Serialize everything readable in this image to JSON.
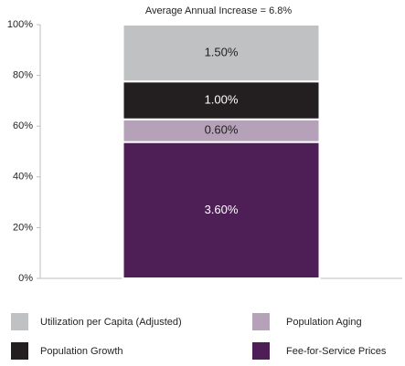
{
  "chart_data": {
    "type": "bar",
    "stacked": "percent",
    "title": "Average Annual Increase = 6.8%",
    "categories": [
      null
    ],
    "series": [
      {
        "name": "Utilization per Capita (Adjusted)",
        "color": "#c0c1c3",
        "values": [
          1.5
        ],
        "value_labels": [
          "1.50%"
        ]
      },
      {
        "name": "Population Growth",
        "color": "#231f20",
        "values": [
          1.0
        ],
        "value_labels": [
          "1.00%"
        ]
      },
      {
        "name": "Population Aging",
        "color": "#b5a1b8",
        "values": [
          0.6
        ],
        "value_labels": [
          "0.60%"
        ]
      },
      {
        "name": "Fee-for-Service Prices",
        "color": "#4e1f56",
        "values": [
          3.6
        ],
        "value_labels": [
          "3.60%"
        ]
      }
    ],
    "ylim": [
      0,
      100
    ],
    "yticks": [
      {
        "value": 0,
        "label": "0%"
      },
      {
        "value": 20,
        "label": "20%"
      },
      {
        "value": 40,
        "label": "40%"
      },
      {
        "value": 60,
        "label": "60%"
      },
      {
        "value": 80,
        "label": "80%"
      },
      {
        "value": 100,
        "label": "100%"
      }
    ],
    "grid": false
  }
}
